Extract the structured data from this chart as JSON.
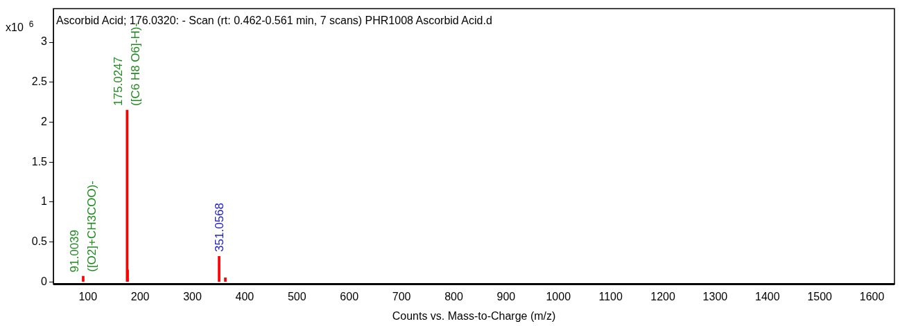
{
  "chart_data": {
    "type": "bar",
    "title": "Ascorbid Acid; 176.0320: - Scan (rt: 0.462-0.561 min, 7 scans) PHR1008 Ascorbid Acid.d",
    "xlabel": "Counts vs. Mass-to-Charge (m/z)",
    "ylabel": "x10$^{6}$",
    "x": [
      91.0039,
      175.0247,
      176.03,
      351.0568,
      363
    ],
    "series": [
      {
        "color": "#ff0000",
        "values": [
          0.07,
          2.15,
          0.15,
          0.32,
          0.05
        ]
      }
    ],
    "xlim": [
      34,
      1643
    ],
    "ylim": [
      -0.03,
      3.42
    ],
    "xticks": [
      100,
      200,
      300,
      400,
      500,
      600,
      700,
      800,
      900,
      1000,
      1100,
      1200,
      1300,
      1400,
      1500,
      1600
    ],
    "yticks": [
      0,
      0.5,
      1,
      1.5,
      2,
      2.5,
      3
    ],
    "annotations": [
      {
        "text": "91.0039",
        "x": 91.0039,
        "y": 0.07
      },
      {
        "text": "([O2]+CH3COO)-",
        "x": 91.0039,
        "y": 0.07
      },
      {
        "text": "175.0247",
        "x": 175.0247,
        "y": 2.15
      },
      {
        "text": "([C6 H8 O6]-H)-",
        "x": 175.0247,
        "y": 2.15
      },
      {
        "text": "351.0568",
        "x": 351.0568,
        "y": 0.32
      }
    ],
    "grid": false,
    "legend": false
  }
}
